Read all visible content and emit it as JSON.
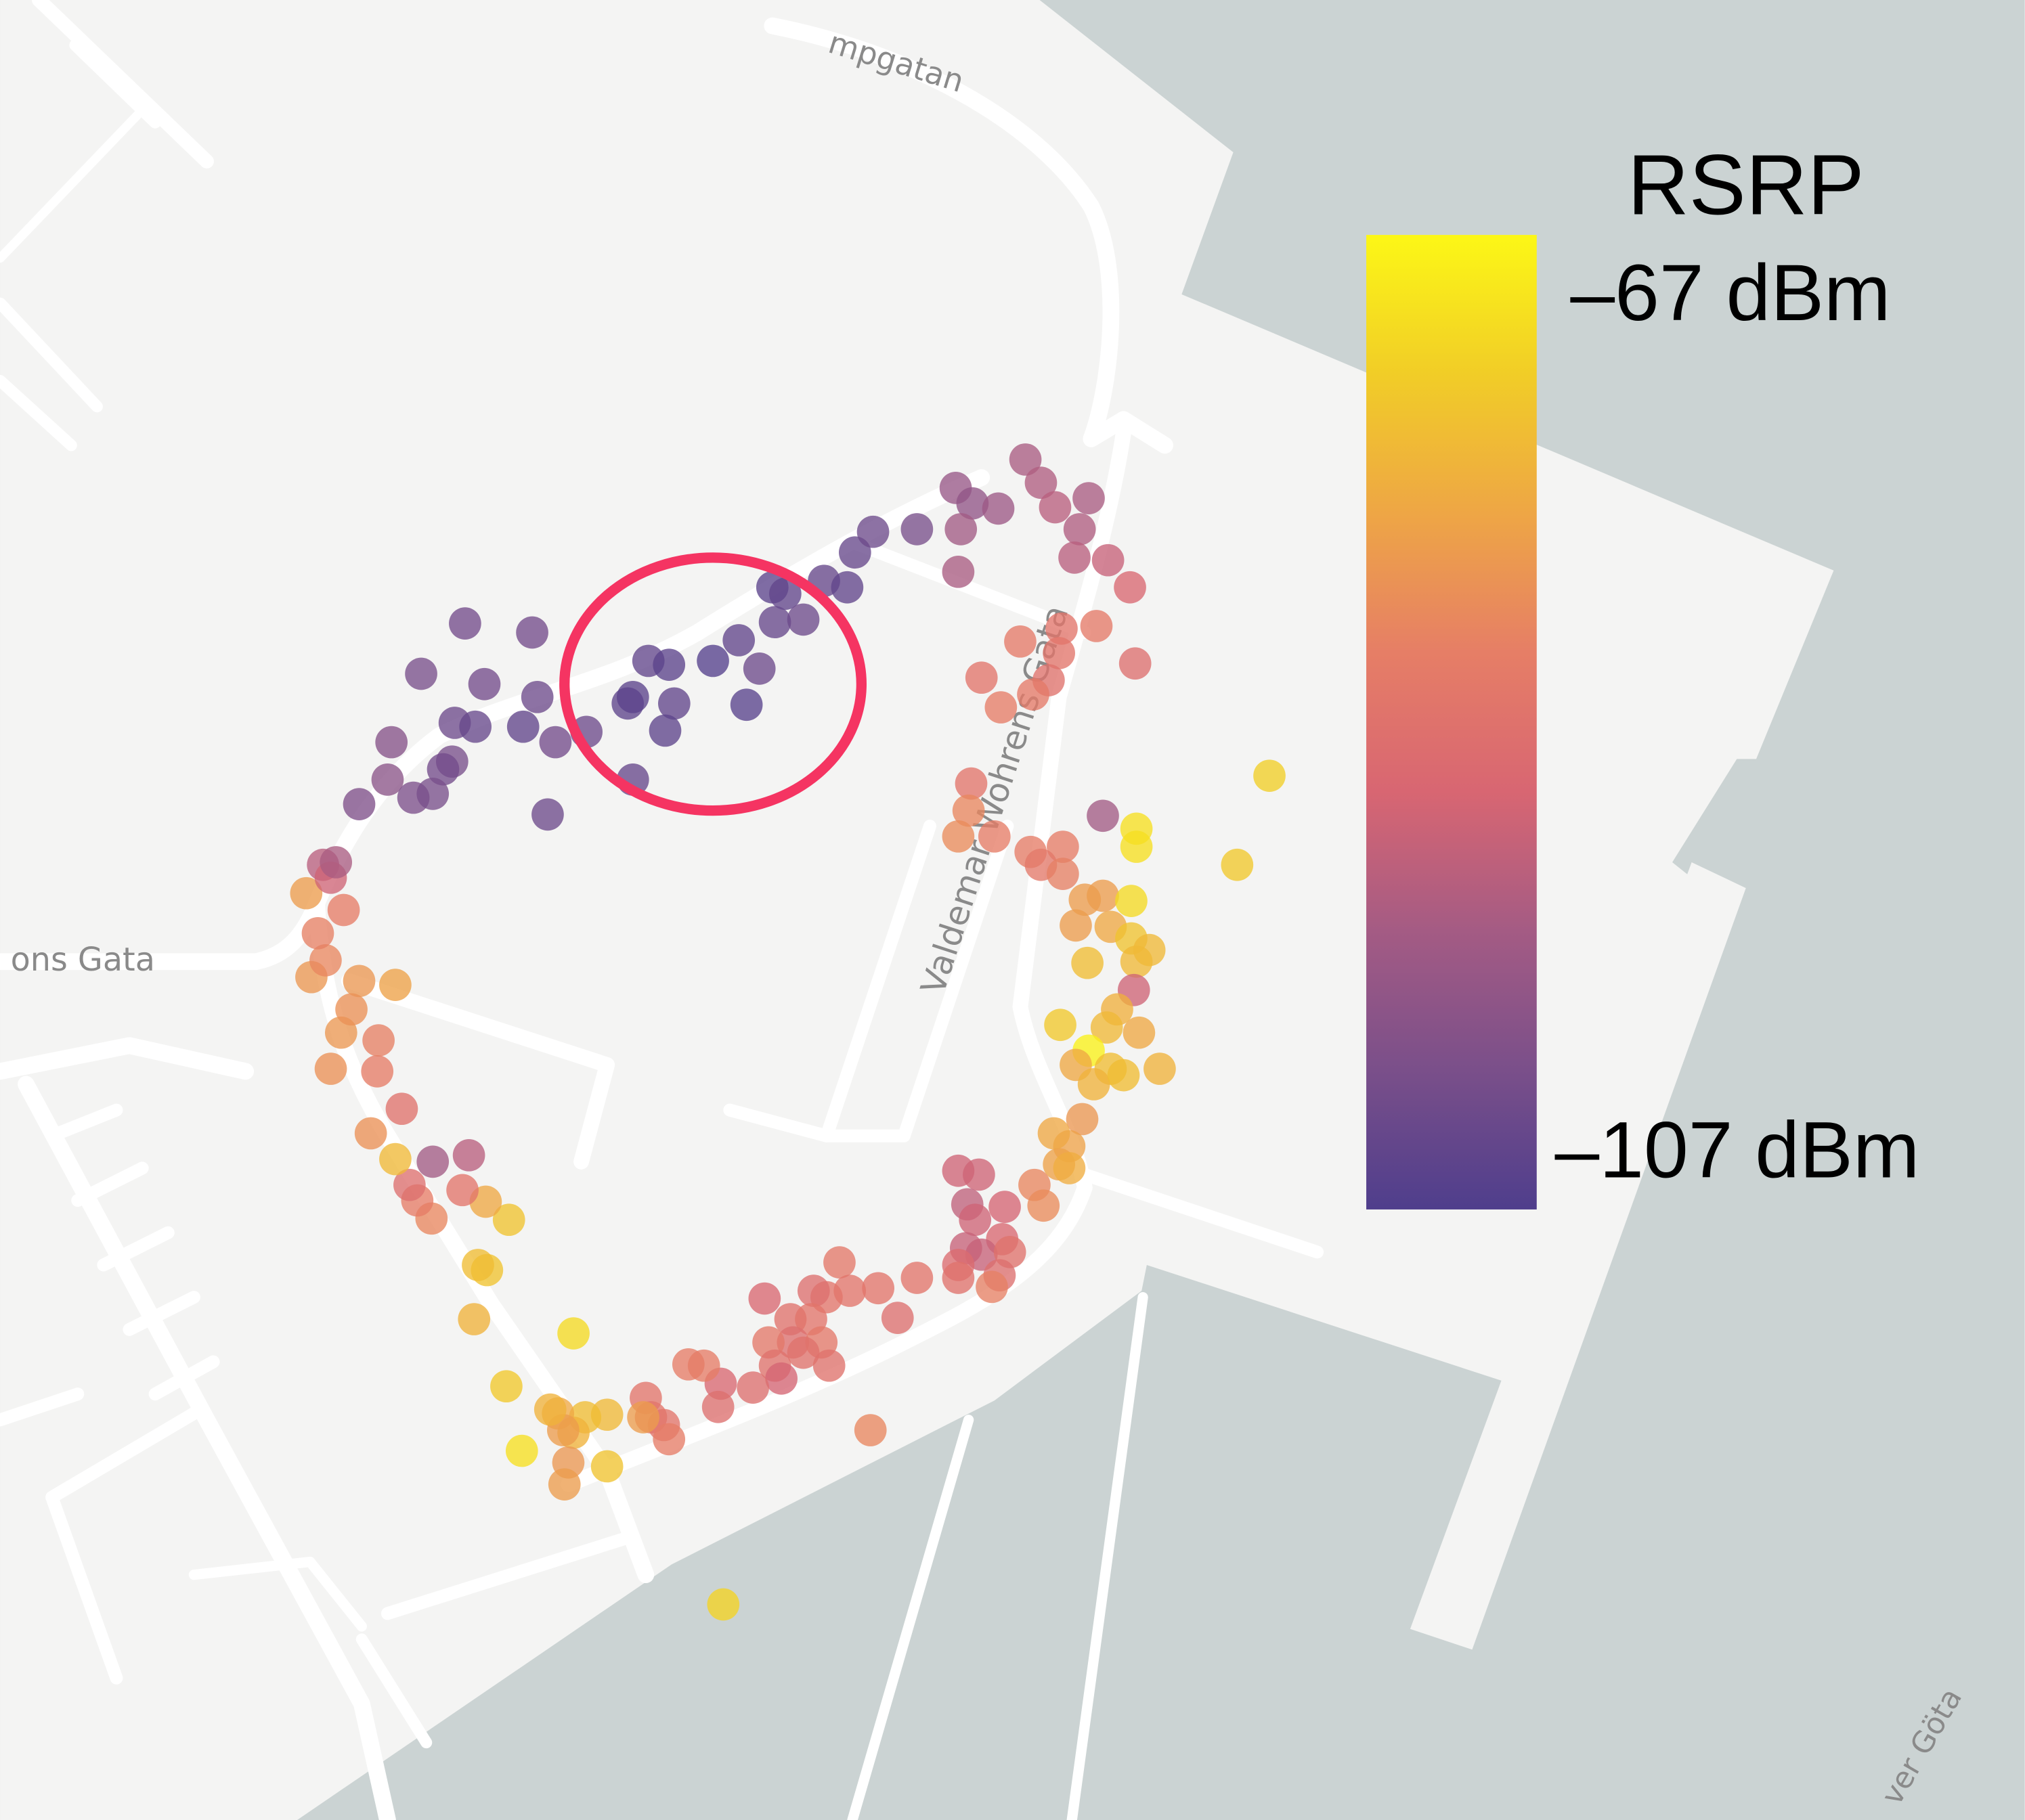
{
  "map": {
    "street_labels": [
      "mpgatan",
      "ons Gata",
      "Valdemar Wohrens Gata",
      "ver Göta"
    ],
    "colors": {
      "water": "#cbd3d3",
      "land": "#f4f4f3",
      "road": "#ffffff",
      "highlight_ring": "#f53462"
    }
  },
  "legend": {
    "title": "RSRP",
    "max_label": "–67 dBm",
    "min_label": "–107 dBm",
    "max_value": -67,
    "min_value": -107,
    "colormap": "plasma",
    "gradient_colors": [
      "#fcf716",
      "#f1cd27",
      "#eea645",
      "#e67e66",
      "#d86672",
      "#a45b84",
      "#7a4f8a",
      "#4f3e8c"
    ]
  },
  "measurements": {
    "marker": "circle",
    "note_circle": "highlighted low-signal cluster",
    "count_visible": "approx. 300"
  }
}
